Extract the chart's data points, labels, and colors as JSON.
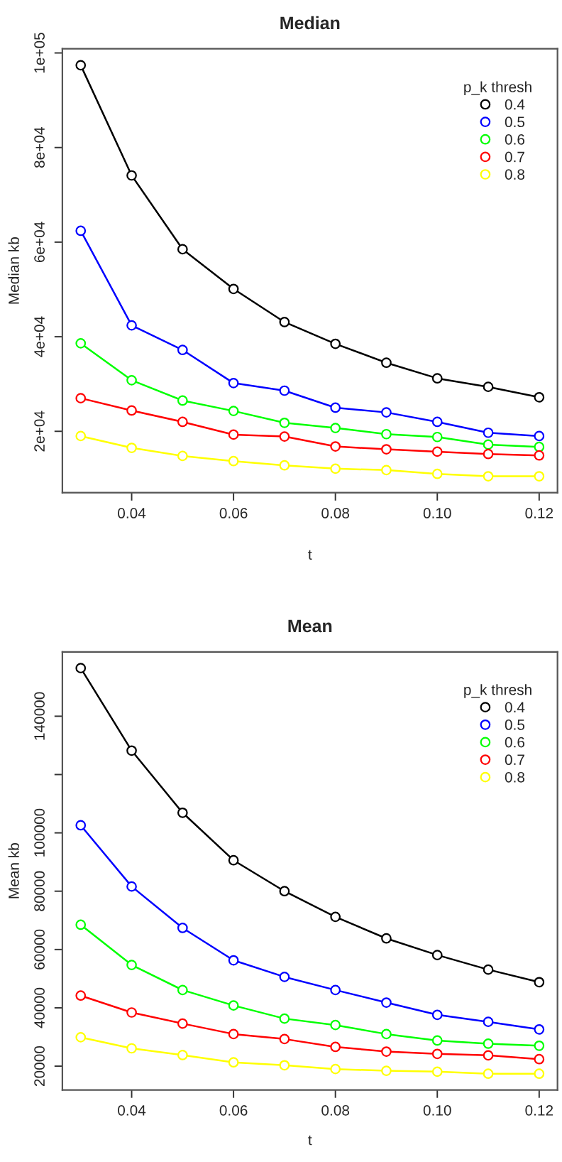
{
  "chart_data": [
    {
      "type": "line",
      "title": "Median",
      "xlabel": "t",
      "ylabel": "Median kb",
      "legend_title": "p_k thresh",
      "legend": "top right",
      "grid": false,
      "marker": "circle",
      "line_style": "solid",
      "x": [
        0.03,
        0.04,
        0.05,
        0.06,
        0.07,
        0.08,
        0.09,
        0.1,
        0.11,
        0.12
      ],
      "xlim": [
        0.0264,
        0.1236
      ],
      "xticks": [
        {
          "value": 0.04,
          "label": "0.04"
        },
        {
          "value": 0.06,
          "label": "0.06"
        },
        {
          "value": 0.08,
          "label": "0.08"
        },
        {
          "value": 0.1,
          "label": "0.10"
        },
        {
          "value": 0.12,
          "label": "0.12"
        }
      ],
      "ylim": [
        7024,
        100876
      ],
      "yticks": [
        {
          "value": 20000,
          "label": "2e+04"
        },
        {
          "value": 40000,
          "label": "4e+04"
        },
        {
          "value": 60000,
          "label": "6e+04"
        },
        {
          "value": 80000,
          "label": "8e+04"
        },
        {
          "value": 100000,
          "label": "1e+05"
        }
      ],
      "series": [
        {
          "name": "0.4",
          "color": "#000000",
          "values": [
            97400,
            74100,
            58500,
            50100,
            43100,
            38500,
            34500,
            31200,
            29400,
            27200
          ]
        },
        {
          "name": "0.5",
          "color": "#0000ff",
          "values": [
            62400,
            42400,
            37200,
            30200,
            28600,
            25000,
            24000,
            22000,
            19700,
            19000
          ]
        },
        {
          "name": "0.6",
          "color": "#00ff00",
          "values": [
            38600,
            30800,
            26500,
            24300,
            21800,
            20700,
            19400,
            18800,
            17200,
            16700
          ]
        },
        {
          "name": "0.7",
          "color": "#ff0000",
          "values": [
            27000,
            24400,
            22000,
            19300,
            18900,
            16800,
            16200,
            15700,
            15200,
            14900
          ]
        },
        {
          "name": "0.8",
          "color": "#ffff00",
          "values": [
            19000,
            16500,
            14800,
            13700,
            12800,
            12100,
            11800,
            11000,
            10500,
            10500
          ]
        }
      ]
    },
    {
      "type": "line",
      "title": "Mean",
      "xlabel": "t",
      "ylabel": "Mean kb",
      "legend_title": "p_k thresh",
      "legend": "top right",
      "grid": false,
      "marker": "circle",
      "line_style": "solid",
      "x": [
        0.03,
        0.04,
        0.05,
        0.06,
        0.07,
        0.08,
        0.09,
        0.1,
        0.11,
        0.12
      ],
      "xlim": [
        0.0264,
        0.1236
      ],
      "xticks": [
        {
          "value": 0.04,
          "label": "0.04"
        },
        {
          "value": 0.06,
          "label": "0.06"
        },
        {
          "value": 0.08,
          "label": "0.08"
        },
        {
          "value": 0.1,
          "label": "0.10"
        },
        {
          "value": 0.12,
          "label": "0.12"
        }
      ],
      "ylim": [
        11836,
        162064
      ],
      "yticks": [
        20000,
        40000,
        60000,
        80000,
        100000,
        {
          "value": 120000,
          "label": null
        },
        140000
      ],
      "series": [
        {
          "name": "0.4",
          "color": "#000000",
          "values": [
            156500,
            128200,
            106900,
            90600,
            80000,
            71200,
            63800,
            58100,
            53100,
            48800
          ]
        },
        {
          "name": "0.5",
          "color": "#0000ff",
          "values": [
            102600,
            81600,
            67400,
            56300,
            50600,
            46100,
            41800,
            37600,
            35200,
            32600
          ]
        },
        {
          "name": "0.6",
          "color": "#00ff00",
          "values": [
            68500,
            54700,
            46100,
            40800,
            36300,
            34100,
            31000,
            28800,
            27700,
            27000
          ]
        },
        {
          "name": "0.7",
          "color": "#ff0000",
          "values": [
            44200,
            38400,
            34600,
            31000,
            29300,
            26600,
            25000,
            24200,
            23700,
            22400
          ]
        },
        {
          "name": "0.8",
          "color": "#ffff00",
          "values": [
            29900,
            26100,
            23800,
            21300,
            20300,
            19000,
            18400,
            18100,
            17400,
            17400
          ]
        }
      ]
    }
  ]
}
